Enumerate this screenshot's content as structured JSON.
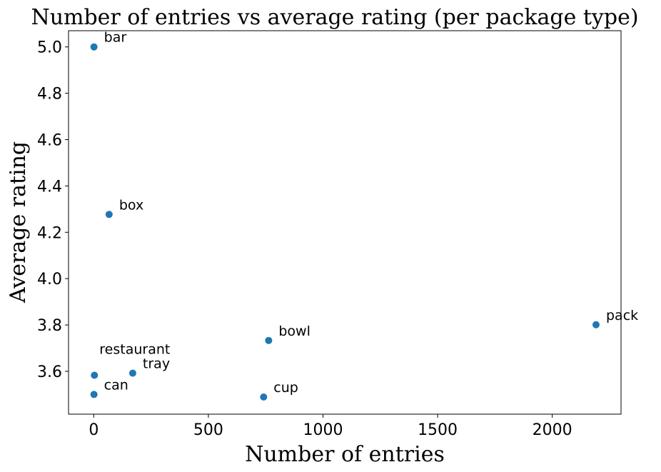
{
  "chart_data": {
    "type": "scatter",
    "title": "Number of entries vs average rating (per package type)",
    "xlabel": "Number of entries",
    "ylabel": "Average rating",
    "xlim": [
      -110,
      2300
    ],
    "ylim": [
      3.415,
      5.07
    ],
    "xticks": [
      0,
      500,
      1000,
      1500,
      2000
    ],
    "yticks": [
      3.6,
      3.8,
      4.0,
      4.2,
      4.4,
      4.6,
      4.8,
      5.0
    ],
    "ytick_labels": [
      "3.6",
      "3.8",
      "4.0",
      "4.2",
      "4.4",
      "4.6",
      "4.8",
      "5.0"
    ],
    "grid": false,
    "color": "#1f77b4",
    "points": [
      {
        "label": "bar",
        "x": 1,
        "y": 5.0
      },
      {
        "label": "box",
        "x": 67,
        "y": 4.277
      },
      {
        "label": "pack",
        "x": 2191,
        "y": 3.801
      },
      {
        "label": "bowl",
        "x": 763,
        "y": 3.733
      },
      {
        "label": "restaurant",
        "x": 3,
        "y": 3.583
      },
      {
        "label": "tray",
        "x": 170,
        "y": 3.592
      },
      {
        "label": "can",
        "x": 1,
        "y": 3.5
      },
      {
        "label": "cup",
        "x": 741,
        "y": 3.489
      }
    ]
  }
}
